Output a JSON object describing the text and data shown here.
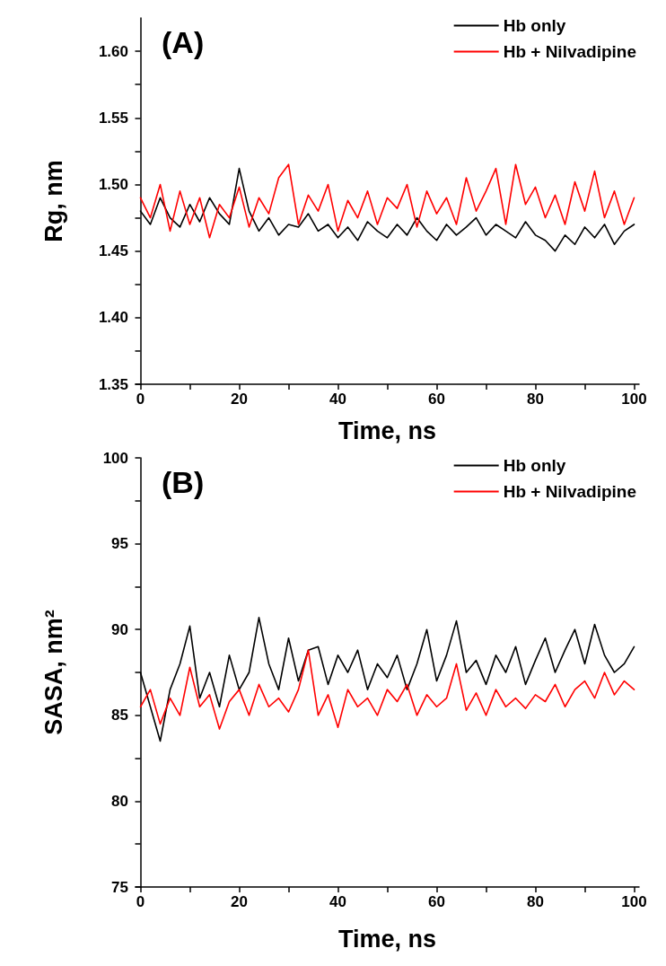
{
  "chart_data": [
    {
      "type": "line",
      "annotations": [
        "(A)"
      ],
      "xlabel": "Time, ns",
      "ylabel": "Rg, nm",
      "x": [
        0,
        2,
        4,
        6,
        8,
        10,
        12,
        14,
        16,
        18,
        20,
        22,
        24,
        26,
        28,
        30,
        32,
        34,
        36,
        38,
        40,
        42,
        44,
        46,
        48,
        50,
        52,
        54,
        56,
        58,
        60,
        62,
        64,
        66,
        68,
        70,
        72,
        74,
        76,
        78,
        80,
        82,
        84,
        86,
        88,
        90,
        92,
        94,
        96,
        98,
        100
      ],
      "series": [
        {
          "name": "Hb only",
          "color": "#000000",
          "values": [
            1.48,
            1.47,
            1.49,
            1.475,
            1.468,
            1.485,
            1.472,
            1.49,
            1.478,
            1.47,
            1.512,
            1.48,
            1.465,
            1.475,
            1.462,
            1.47,
            1.468,
            1.478,
            1.465,
            1.47,
            1.46,
            1.468,
            1.458,
            1.472,
            1.465,
            1.46,
            1.47,
            1.462,
            1.475,
            1.465,
            1.458,
            1.47,
            1.462,
            1.468,
            1.475,
            1.462,
            1.47,
            1.465,
            1.46,
            1.472,
            1.462,
            1.458,
            1.45,
            1.462,
            1.455,
            1.468,
            1.46,
            1.47,
            1.455,
            1.465,
            1.47
          ]
        },
        {
          "name": "Hb + Nilvadipine",
          "color": "#ff0000",
          "values": [
            1.49,
            1.475,
            1.5,
            1.465,
            1.495,
            1.47,
            1.49,
            1.46,
            1.485,
            1.475,
            1.498,
            1.468,
            1.49,
            1.478,
            1.505,
            1.515,
            1.47,
            1.492,
            1.48,
            1.5,
            1.465,
            1.488,
            1.475,
            1.495,
            1.47,
            1.49,
            1.482,
            1.5,
            1.468,
            1.495,
            1.478,
            1.49,
            1.47,
            1.505,
            1.48,
            1.495,
            1.512,
            1.47,
            1.515,
            1.485,
            1.498,
            1.475,
            1.492,
            1.47,
            1.502,
            1.48,
            1.51,
            1.475,
            1.495,
            1.47,
            1.49
          ]
        }
      ],
      "xlim": [
        -1,
        101
      ],
      "xticks": [
        0,
        {
          "value": 10,
          "label": null
        },
        20,
        {
          "value": 30,
          "label": null
        },
        40,
        {
          "value": 50,
          "label": null
        },
        60,
        {
          "value": 70,
          "label": null
        },
        80,
        {
          "value": 90,
          "label": null
        },
        100
      ],
      "ylim": [
        1.35,
        1.625
      ],
      "yticks": [
        {
          "value": 1.35,
          "label": "1.35"
        },
        {
          "value": 1.375,
          "label": null
        },
        {
          "value": 1.4,
          "label": "1.40"
        },
        {
          "value": 1.425,
          "label": null
        },
        {
          "value": 1.45,
          "label": "1.45"
        },
        {
          "value": 1.475,
          "label": null
        },
        {
          "value": 1.5,
          "label": "1.50"
        },
        {
          "value": 1.525,
          "label": null
        },
        {
          "value": 1.55,
          "label": "1.55"
        },
        {
          "value": 1.575,
          "label": null
        },
        {
          "value": 1.6,
          "label": "1.60"
        }
      ],
      "grid": false,
      "legend": "top right",
      "marker": "none",
      "line_style": "solid"
    },
    {
      "type": "line",
      "annotations": [
        "(B)"
      ],
      "xlabel": "Time, ns",
      "ylabel": "SASA, nm²",
      "x": [
        0,
        2,
        4,
        6,
        8,
        10,
        12,
        14,
        16,
        18,
        20,
        22,
        24,
        26,
        28,
        30,
        32,
        34,
        36,
        38,
        40,
        42,
        44,
        46,
        48,
        50,
        52,
        54,
        56,
        58,
        60,
        62,
        64,
        66,
        68,
        70,
        72,
        74,
        76,
        78,
        80,
        82,
        84,
        86,
        88,
        90,
        92,
        94,
        96,
        98,
        100
      ],
      "series": [
        {
          "name": "Hb only",
          "color": "#000000",
          "values": [
            87.5,
            85.5,
            83.5,
            86.5,
            88.0,
            90.2,
            86.0,
            87.5,
            85.5,
            88.5,
            86.5,
            87.5,
            90.7,
            88.0,
            86.5,
            89.5,
            87.0,
            88.8,
            89.0,
            86.8,
            88.5,
            87.5,
            88.8,
            86.5,
            88.0,
            87.2,
            88.5,
            86.5,
            88.0,
            90.0,
            87.0,
            88.5,
            90.5,
            87.5,
            88.2,
            86.8,
            88.5,
            87.5,
            89.0,
            86.8,
            88.2,
            89.5,
            87.5,
            88.8,
            90.0,
            88.0,
            90.3,
            88.5,
            87.5,
            88.0,
            89.0
          ]
        },
        {
          "name": "Hb + Nilvadipine",
          "color": "#ff0000",
          "values": [
            85.5,
            86.5,
            84.5,
            86.0,
            85.0,
            87.8,
            85.5,
            86.2,
            84.2,
            85.8,
            86.5,
            85.0,
            86.8,
            85.5,
            86.0,
            85.2,
            86.5,
            88.8,
            85.0,
            86.2,
            84.3,
            86.5,
            85.5,
            86.0,
            85.0,
            86.5,
            85.8,
            86.8,
            85.0,
            86.2,
            85.5,
            86.0,
            88.0,
            85.3,
            86.3,
            85.0,
            86.5,
            85.5,
            86.0,
            85.4,
            86.2,
            85.8,
            86.8,
            85.5,
            86.5,
            87.0,
            86.0,
            87.5,
            86.2,
            87.0,
            86.5
          ]
        }
      ],
      "xlim": [
        -1,
        101
      ],
      "xticks": [
        0,
        {
          "value": 10,
          "label": null
        },
        20,
        {
          "value": 30,
          "label": null
        },
        40,
        {
          "value": 50,
          "label": null
        },
        60,
        {
          "value": 70,
          "label": null
        },
        80,
        {
          "value": 90,
          "label": null
        },
        100
      ],
      "ylim": [
        75,
        100
      ],
      "yticks": [
        75,
        {
          "value": 77.5,
          "label": null
        },
        80,
        {
          "value": 82.5,
          "label": null
        },
        85,
        {
          "value": 87.5,
          "label": null
        },
        90,
        {
          "value": 92.5,
          "label": null
        },
        95,
        {
          "value": 97.5,
          "label": null
        },
        100
      ],
      "grid": false,
      "legend": "top right",
      "marker": "none",
      "line_style": "solid"
    }
  ]
}
